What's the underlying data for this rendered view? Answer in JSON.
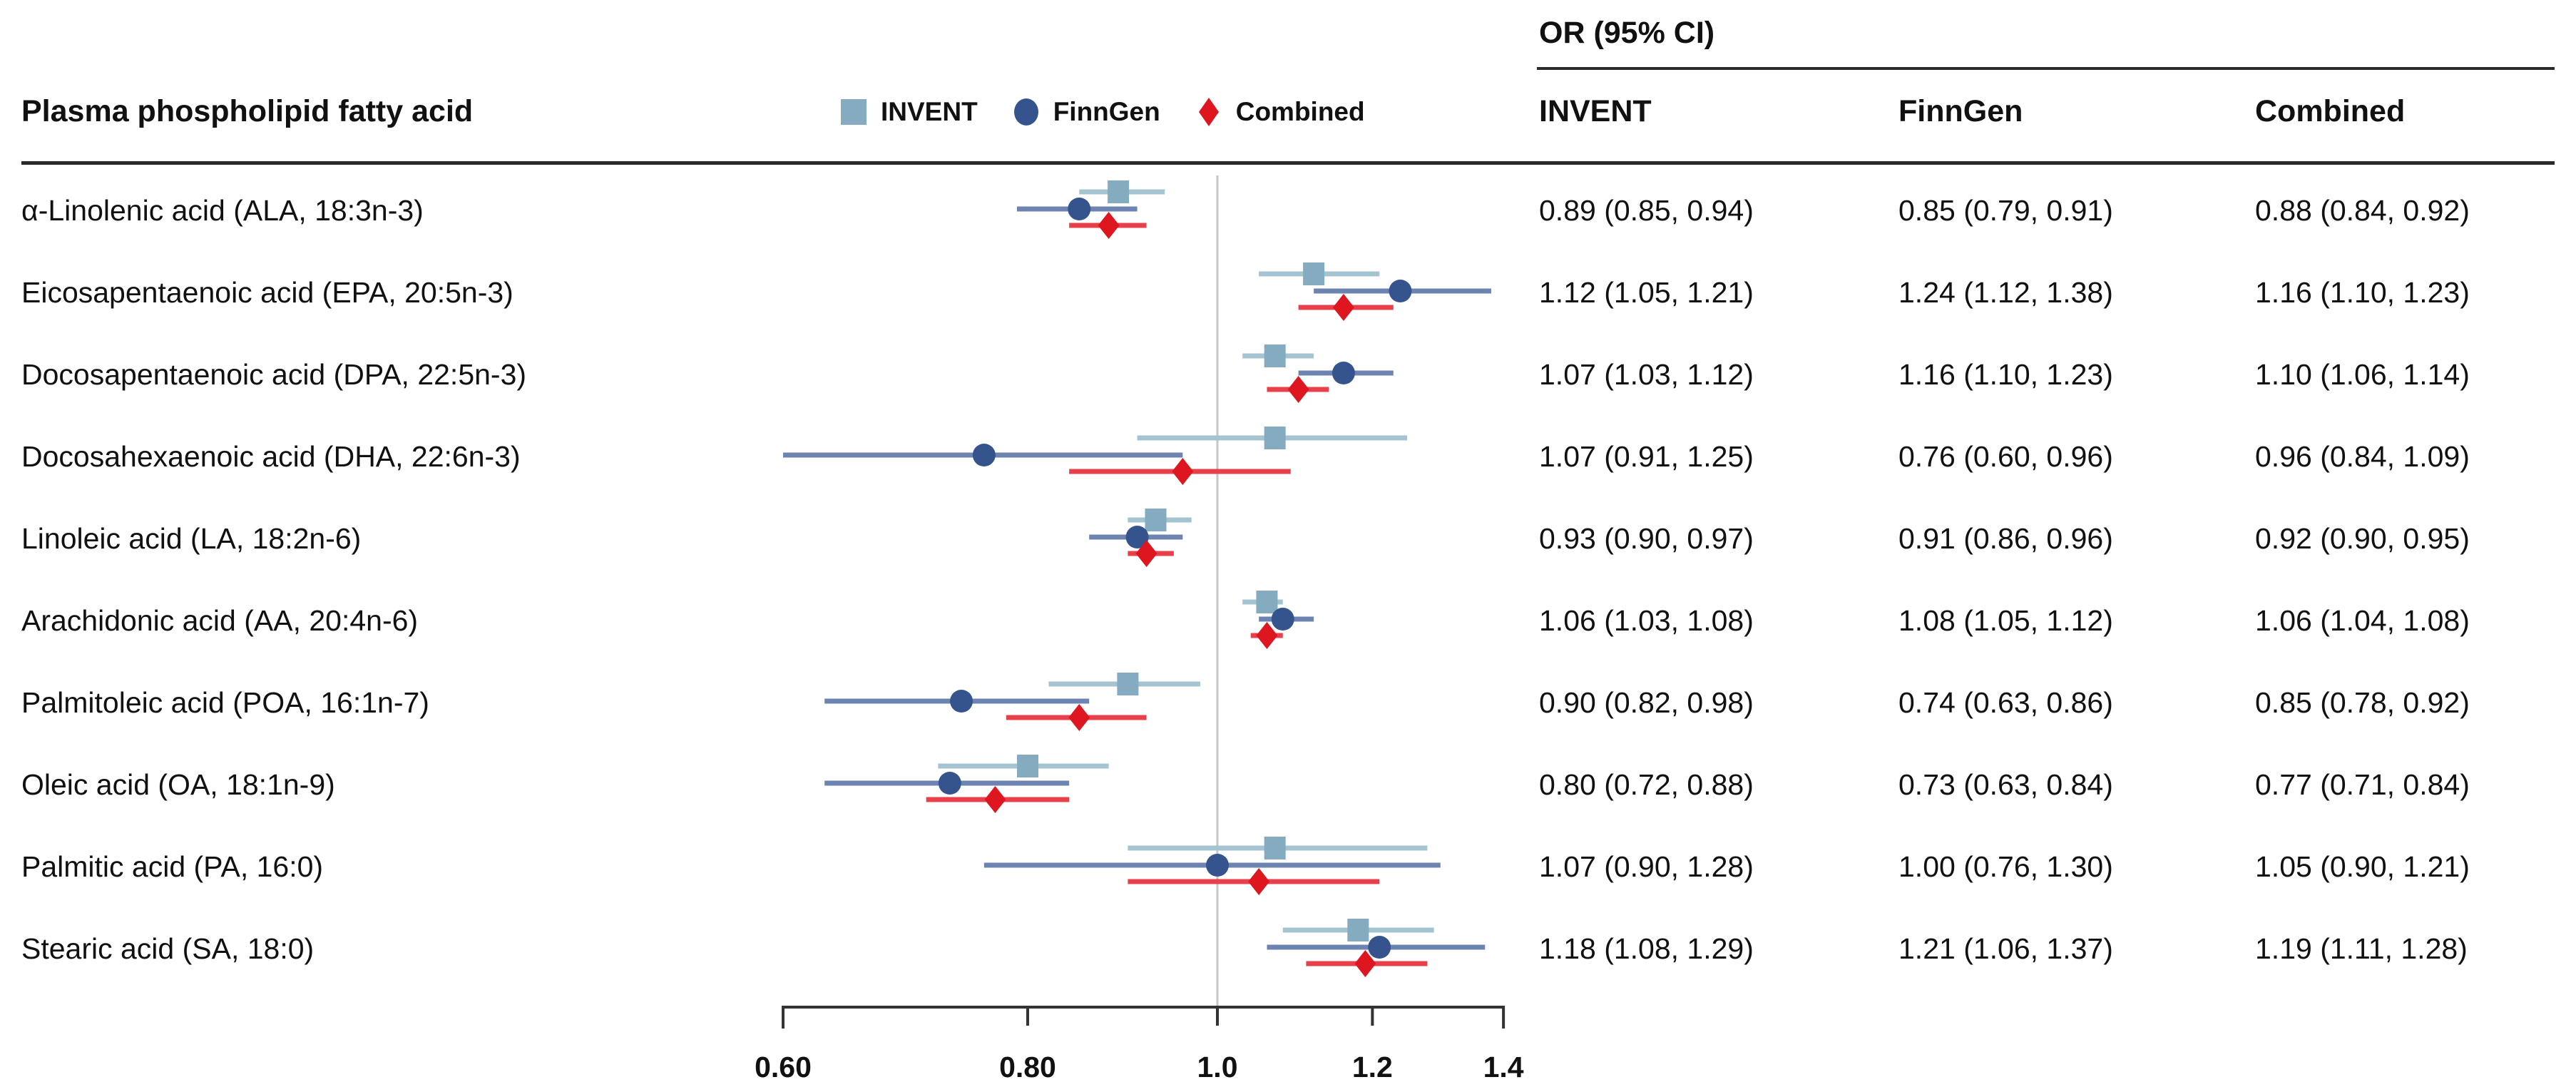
{
  "header": {
    "left_title": "Plasma phospholipid fatty acid",
    "or_ci_title": "OR (95% CI)",
    "columns": [
      "INVENT",
      "FinnGen",
      "Combined"
    ]
  },
  "colors": {
    "background": "#ffffff",
    "text": "#111111",
    "rule": "#2b2b2b",
    "axis": "#333333",
    "reference_line": "#c6c6c6",
    "invent_marker": "#85abc0",
    "invent_line": "#a5c4d1",
    "finngen_marker": "#35548e",
    "finngen_line": "#6d84b2",
    "combined_marker": "#dd161f",
    "combined_line": "#e8404a"
  },
  "chart_data": {
    "type": "forest",
    "title": "Forest plot of plasma phospholipid fatty acids and odds ratios (95% CI)",
    "x_scale": "log",
    "x_range": [
      0.6,
      1.4
    ],
    "reference_line": 1.0,
    "grid": false,
    "legend_position": "top",
    "x_ticks": {
      "labels": [
        "0.60",
        "0.80",
        "1.0",
        "1.2",
        "1.4"
      ],
      "values": [
        0.6,
        0.8,
        1.0,
        1.2,
        1.4
      ]
    },
    "series": [
      {
        "name": "INVENT",
        "shape": "square",
        "marker_color": "#85abc0",
        "line_color": "#a5c4d1"
      },
      {
        "name": "FinnGen",
        "shape": "circle",
        "marker_color": "#35548e",
        "line_color": "#6d84b2"
      },
      {
        "name": "Combined",
        "shape": "diamond",
        "marker_color": "#dd161f",
        "line_color": "#e8404a"
      }
    ],
    "rows": [
      {
        "label": "α-Linolenic acid (ALA, 18:3n-3)",
        "series": [
          {
            "or": 0.89,
            "lo": 0.85,
            "hi": 0.94,
            "text": "0.89 (0.85, 0.94)"
          },
          {
            "or": 0.85,
            "lo": 0.79,
            "hi": 0.91,
            "text": "0.85 (0.79, 0.91)"
          },
          {
            "or": 0.88,
            "lo": 0.84,
            "hi": 0.92,
            "text": "0.88 (0.84, 0.92)"
          }
        ]
      },
      {
        "label": "Eicosapentaenoic acid (EPA, 20:5n-3)",
        "series": [
          {
            "or": 1.12,
            "lo": 1.05,
            "hi": 1.21,
            "text": "1.12 (1.05, 1.21)"
          },
          {
            "or": 1.24,
            "lo": 1.12,
            "hi": 1.38,
            "text": "1.24 (1.12, 1.38)"
          },
          {
            "or": 1.16,
            "lo": 1.1,
            "hi": 1.23,
            "text": "1.16 (1.10, 1.23)"
          }
        ]
      },
      {
        "label": "Docosapentaenoic acid (DPA, 22:5n-3)",
        "series": [
          {
            "or": 1.07,
            "lo": 1.03,
            "hi": 1.12,
            "text": "1.07 (1.03, 1.12)"
          },
          {
            "or": 1.16,
            "lo": 1.1,
            "hi": 1.23,
            "text": "1.16 (1.10, 1.23)"
          },
          {
            "or": 1.1,
            "lo": 1.06,
            "hi": 1.14,
            "text": "1.10 (1.06, 1.14)"
          }
        ]
      },
      {
        "label": "Docosahexaenoic acid (DHA, 22:6n-3)",
        "series": [
          {
            "or": 1.07,
            "lo": 0.91,
            "hi": 1.25,
            "text": "1.07 (0.91, 1.25)"
          },
          {
            "or": 0.76,
            "lo": 0.6,
            "hi": 0.96,
            "text": "0.76 (0.60, 0.96)"
          },
          {
            "or": 0.96,
            "lo": 0.84,
            "hi": 1.09,
            "text": "0.96 (0.84, 1.09)"
          }
        ]
      },
      {
        "label": "Linoleic acid (LA, 18:2n-6)",
        "series": [
          {
            "or": 0.93,
            "lo": 0.9,
            "hi": 0.97,
            "text": "0.93 (0.90, 0.97)"
          },
          {
            "or": 0.91,
            "lo": 0.86,
            "hi": 0.96,
            "text": "0.91 (0.86, 0.96)"
          },
          {
            "or": 0.92,
            "lo": 0.9,
            "hi": 0.95,
            "text": "0.92 (0.90, 0.95)"
          }
        ]
      },
      {
        "label": "Arachidonic acid (AA, 20:4n-6)",
        "series": [
          {
            "or": 1.06,
            "lo": 1.03,
            "hi": 1.08,
            "text": "1.06 (1.03, 1.08)"
          },
          {
            "or": 1.08,
            "lo": 1.05,
            "hi": 1.12,
            "text": "1.08 (1.05, 1.12)"
          },
          {
            "or": 1.06,
            "lo": 1.04,
            "hi": 1.08,
            "text": "1.06 (1.04, 1.08)"
          }
        ]
      },
      {
        "label": "Palmitoleic acid (POA, 16:1n-7)",
        "series": [
          {
            "or": 0.9,
            "lo": 0.82,
            "hi": 0.98,
            "text": "0.90 (0.82, 0.98)"
          },
          {
            "or": 0.74,
            "lo": 0.63,
            "hi": 0.86,
            "text": "0.74 (0.63, 0.86)"
          },
          {
            "or": 0.85,
            "lo": 0.78,
            "hi": 0.92,
            "text": "0.85 (0.78, 0.92)"
          }
        ]
      },
      {
        "label": "Oleic acid (OA, 18:1n-9)",
        "series": [
          {
            "or": 0.8,
            "lo": 0.72,
            "hi": 0.88,
            "text": "0.80 (0.72, 0.88)"
          },
          {
            "or": 0.73,
            "lo": 0.63,
            "hi": 0.84,
            "text": "0.73 (0.63, 0.84)"
          },
          {
            "or": 0.77,
            "lo": 0.71,
            "hi": 0.84,
            "text": "0.77 (0.71, 0.84)"
          }
        ]
      },
      {
        "label": "Palmitic acid (PA, 16:0)",
        "series": [
          {
            "or": 1.07,
            "lo": 0.9,
            "hi": 1.28,
            "text": "1.07 (0.90, 1.28)"
          },
          {
            "or": 1.0,
            "lo": 0.76,
            "hi": 1.3,
            "text": "1.00 (0.76, 1.30)"
          },
          {
            "or": 1.05,
            "lo": 0.9,
            "hi": 1.21,
            "text": "1.05 (0.90, 1.21)"
          }
        ]
      },
      {
        "label": "Stearic acid (SA, 18:0)",
        "series": [
          {
            "or": 1.18,
            "lo": 1.08,
            "hi": 1.29,
            "text": "1.18 (1.08, 1.29)"
          },
          {
            "or": 1.21,
            "lo": 1.06,
            "hi": 1.37,
            "text": "1.21 (1.06, 1.37)"
          },
          {
            "or": 1.19,
            "lo": 1.11,
            "hi": 1.28,
            "text": "1.19 (1.11, 1.28)"
          }
        ]
      }
    ]
  }
}
